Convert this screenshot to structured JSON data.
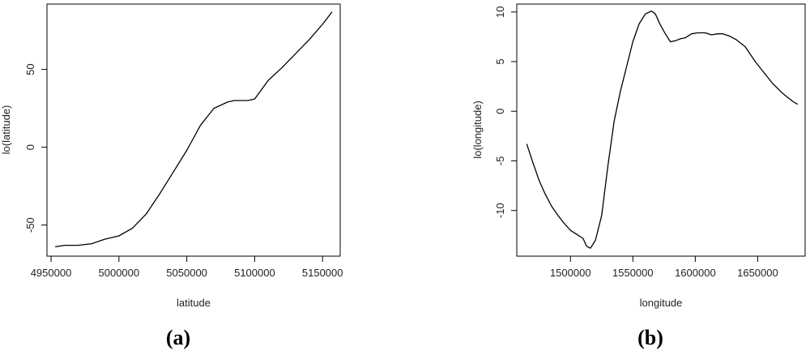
{
  "chart_data": [
    {
      "type": "line",
      "panel_label": "(a)",
      "xlabel": "latitude",
      "ylabel": "lo(latitude)",
      "xlim": [
        4947000,
        5163000
      ],
      "ylim": [
        -70,
        92
      ],
      "x_ticks": [
        4950000,
        5000000,
        5050000,
        5100000,
        5150000
      ],
      "y_ticks": [
        -50,
        0,
        50
      ],
      "series": [
        {
          "x": [
            4953000,
            4960000,
            4970000,
            4980000,
            4990000,
            5000000,
            5010000,
            5020000,
            5030000,
            5040000,
            5050000,
            5060000,
            5070000,
            5080000,
            5085000,
            5090000,
            5095000,
            5100000,
            5105000,
            5110000,
            5120000,
            5130000,
            5140000,
            5150000,
            5157000
          ],
          "y": [
            -64,
            -63,
            -63,
            -62,
            -59,
            -57,
            -52,
            -43,
            -30,
            -16,
            -2,
            14,
            25,
            29,
            30,
            30,
            30,
            31,
            37,
            43,
            51,
            60,
            69,
            79,
            87
          ]
        }
      ]
    },
    {
      "type": "line",
      "panel_label": "(b)",
      "xlabel": "longitude",
      "ylabel": "lo(longitude)",
      "xlim": [
        1457000,
        1688000
      ],
      "ylim": [
        -14.6,
        10.8
      ],
      "x_ticks": [
        1500000,
        1550000,
        1600000,
        1650000
      ],
      "y_ticks": [
        -10,
        -5,
        0,
        5,
        10
      ],
      "series": [
        {
          "x": [
            1465000,
            1470000,
            1475000,
            1480000,
            1485000,
            1490000,
            1495000,
            1500000,
            1505000,
            1510000,
            1513000,
            1516000,
            1520000,
            1525000,
            1530000,
            1535000,
            1540000,
            1545000,
            1550000,
            1555000,
            1560000,
            1565000,
            1568000,
            1572000,
            1576000,
            1580000,
            1584000,
            1588000,
            1592000,
            1597000,
            1602000,
            1608000,
            1613000,
            1618000,
            1622000,
            1627000,
            1633000,
            1640000,
            1648000,
            1655000,
            1662000,
            1670000,
            1678000,
            1682000
          ],
          "y": [
            -3.3,
            -5.2,
            -7.0,
            -8.4,
            -9.6,
            -10.5,
            -11.3,
            -12.0,
            -12.4,
            -12.8,
            -13.6,
            -13.8,
            -13.0,
            -10.5,
            -5.5,
            -1.0,
            2.0,
            4.5,
            7.0,
            8.8,
            9.8,
            10.1,
            9.8,
            8.7,
            7.8,
            7.0,
            7.1,
            7.3,
            7.4,
            7.8,
            7.9,
            7.9,
            7.7,
            7.8,
            7.8,
            7.6,
            7.2,
            6.5,
            5.0,
            3.9,
            2.8,
            1.8,
            1.0,
            0.7
          ]
        }
      ]
    }
  ]
}
